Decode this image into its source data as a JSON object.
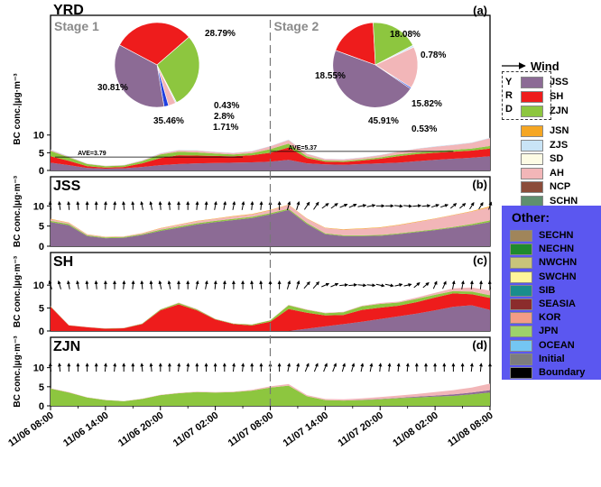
{
  "colors": {
    "JSS": "#8c6b95",
    "SH": "#ee1c1c",
    "ZJN": "#8dc63f",
    "JSN": "#f5a623",
    "ZJS": "#c9e4f6",
    "SD": "#fdfbe4",
    "AH": "#f2b6b8",
    "NCP": "#8b4c3a",
    "SCHN": "#5f8f6f",
    "SECHN": "#a0855a",
    "NECHN": "#1f8a2e",
    "NWCHN": "#c9c47a",
    "SWCHN": "#fff59a",
    "SIB": "#1a8d8d",
    "SEASIA": "#8b2c2c",
    "KOR": "#f39c86",
    "JPN": "#9ed16b",
    "OCEAN": "#74c6f2",
    "Initial": "#7d7d7d",
    "Boundary": "#000000",
    "other_box": "#5b57f0"
  },
  "legend": {
    "wind_label": "Wind",
    "yrd_letters": [
      "Y",
      "R",
      "D"
    ],
    "yrd_items": [
      "JSS",
      "SH",
      "ZJN"
    ],
    "main_items": [
      "JSN",
      "ZJS",
      "SD",
      "AH",
      "NCP",
      "SCHN"
    ],
    "other_title": "Other:",
    "other_items": [
      "SECHN",
      "NECHN",
      "NWCHN",
      "SWCHN",
      "SIB",
      "SEASIA",
      "KOR",
      "JPN",
      "OCEAN",
      "Initial",
      "Boundary"
    ]
  },
  "chart_data": {
    "type": "area",
    "x_tick_labels": [
      "11/06 08:00",
      "11/06 14:00",
      "11/06 20:00",
      "11/07 02:00",
      "11/07 08:00",
      "11/07 14:00",
      "11/07 20:00",
      "11/08 02:00",
      "11/08 08:00"
    ],
    "x_hours": [
      0,
      6,
      12,
      18,
      24,
      30,
      36,
      42,
      48
    ],
    "ylabel": "BC conc.|μg·m⁻³",
    "ylim": [
      0,
      13
    ],
    "yticks": [
      0,
      5,
      10
    ],
    "stage_divider_hour": 24,
    "hours": [
      0,
      2,
      4,
      6,
      8,
      10,
      12,
      14,
      16,
      18,
      20,
      22,
      24,
      26,
      28,
      30,
      32,
      34,
      36,
      38,
      40,
      42,
      44,
      46,
      48
    ],
    "panels": [
      {
        "title": "YRD",
        "letter": "(a)",
        "stage_labels": [
          "Stage 1",
          "Stage 2"
        ],
        "ave": [
          {
            "label": "AVE=3.79",
            "value": 3.79,
            "x_range": [
              0.5,
              21
            ]
          },
          {
            "label": "AVE=5.37",
            "value": 5.37,
            "x_range": [
              24,
              44
            ]
          }
        ],
        "series": [
          {
            "name": "JSS",
            "values": [
              2.2,
              1.5,
              0.7,
              0.5,
              0.6,
              1,
              1.5,
              1.8,
              2,
              2.1,
              2.2,
              2.3,
              2.5,
              3,
              2,
              1.7,
              1.6,
              1.8,
              2,
              2.2,
              2.6,
              3,
              3.3,
              3.6,
              4
            ]
          },
          {
            "name": "SH",
            "values": [
              1.8,
              1.2,
              0.5,
              0.3,
              0.4,
              1,
              2,
              2.5,
              2.2,
              2,
              1.8,
              2,
              2.5,
              3.5,
              1.5,
              0.8,
              0.8,
              1,
              1.3,
              1.8,
              2,
              2,
              2,
              2,
              2.2
            ]
          },
          {
            "name": "ZJN",
            "values": [
              1.5,
              1,
              0.6,
              0.4,
              0.4,
              0.6,
              1,
              1,
              0.9,
              0.7,
              0.5,
              0.6,
              1,
              1.1,
              0.5,
              0.3,
              0.3,
              0.3,
              0.4,
              0.5,
              0.5,
              0.5,
              0.5,
              0.6,
              0.7
            ]
          },
          {
            "name": "AH",
            "values": [
              0.3,
              0.2,
              0.1,
              0.1,
              0.1,
              0.2,
              0.3,
              0.4,
              0.5,
              0.4,
              0.4,
              0.5,
              0.8,
              1,
              0.7,
              0.4,
              0.4,
              0.5,
              0.6,
              0.8,
              1,
              1.2,
              1.4,
              1.6,
              2.2
            ]
          },
          {
            "name": "ZJS",
            "values": [
              0.1,
              0.1,
              0.05,
              0.05,
              0.05,
              0.1,
              0.1,
              0.1,
              0.1,
              0.1,
              0.1,
              0.1,
              0.1,
              0.1,
              0.1,
              0.1,
              0.1,
              0.1,
              0.1,
              0.1,
              0.1,
              0.1,
              0.1,
              0.1,
              0.15
            ]
          }
        ],
        "pies": [
          {
            "stage": "Stage 1",
            "slices": [
              {
                "name": "JSS",
                "value": 35.46
              },
              {
                "name": "SH",
                "value": 30.81
              },
              {
                "name": "ZJN",
                "value": 28.79
              },
              {
                "name": "AH",
                "value": 2.8
              },
              {
                "name": "ZJS",
                "value": 0.43
              },
              {
                "name": "Other",
                "value": 1.71
              }
            ]
          },
          {
            "stage": "Stage 2",
            "slices": [
              {
                "name": "JSS",
                "value": 45.91
              },
              {
                "name": "SH",
                "value": 18.55
              },
              {
                "name": "ZJN",
                "value": 18.08
              },
              {
                "name": "AH",
                "value": 15.82
              },
              {
                "name": "ZJS",
                "value": 0.78
              },
              {
                "name": "Other",
                "value": 0.53
              }
            ]
          }
        ]
      },
      {
        "title": "JSS",
        "letter": "(b)",
        "series": [
          {
            "name": "JSS",
            "values": [
              6,
              5.2,
              2.5,
              2,
              2.1,
              2.8,
              3.8,
              4.6,
              5.4,
              6,
              6.5,
              7,
              7.9,
              9,
              5.5,
              3,
              2.5,
              2.5,
              2.6,
              3,
              3.5,
              4,
              4.6,
              5.2,
              6
            ]
          },
          {
            "name": "ZJN",
            "values": [
              0.3,
              0.3,
              0.2,
              0.2,
              0.2,
              0.2,
              0.3,
              0.3,
              0.3,
              0.3,
              0.3,
              0.3,
              0.3,
              0.3,
              0.3,
              0.2,
              0.2,
              0.2,
              0.2,
              0.2,
              0.2,
              0.2,
              0.2,
              0.3,
              0.4
            ]
          },
          {
            "name": "AH",
            "values": [
              0.4,
              0.3,
              0.2,
              0.1,
              0.1,
              0.2,
              0.3,
              0.4,
              0.5,
              0.5,
              0.6,
              0.6,
              0.7,
              0.9,
              1,
              1.3,
              1.4,
              1.6,
              1.8,
              2,
              2.3,
              2.6,
              2.9,
              3.1,
              3.3
            ]
          },
          {
            "name": "JSN",
            "values": [
              0.1,
              0.1,
              0.05,
              0.05,
              0.05,
              0.05,
              0.1,
              0.1,
              0.1,
              0.1,
              0.1,
              0.1,
              0.1,
              0.1,
              0.1,
              0.1,
              0.1,
              0.1,
              0.1,
              0.1,
              0.1,
              0.1,
              0.1,
              0.1,
              0.2
            ]
          }
        ]
      },
      {
        "title": "SH",
        "letter": "(c)",
        "series": [
          {
            "name": "JSS",
            "values": [
              0,
              0,
              0,
              0,
              0,
              0,
              0,
              0,
              0,
              0,
              0,
              0,
              0,
              0,
              0.5,
              1,
              1.5,
              2,
              2.6,
              3.2,
              3.8,
              4.5,
              5.3,
              5.6,
              4.6
            ]
          },
          {
            "name": "SH",
            "values": [
              5.3,
              1.2,
              0.8,
              0.5,
              0.6,
              1.5,
              4.5,
              5.8,
              4.5,
              2.5,
              1.5,
              1.2,
              2,
              4.8,
              3.5,
              2.4,
              2,
              2.6,
              2.5,
              2.3,
              2.5,
              2.8,
              2.9,
              2.4,
              2.6
            ]
          },
          {
            "name": "ZJN",
            "values": [
              0.1,
              0.05,
              0.05,
              0.05,
              0.05,
              0.1,
              0.2,
              0.3,
              0.2,
              0.1,
              0.1,
              0.2,
              0.3,
              0.8,
              0.6,
              0.5,
              0.6,
              0.8,
              0.8,
              0.7,
              0.7,
              0.6,
              0.5,
              0.6,
              0.6
            ]
          },
          {
            "name": "AH",
            "values": [
              0.05,
              0.05,
              0.05,
              0.05,
              0.05,
              0.05,
              0.05,
              0.1,
              0.1,
              0.05,
              0.05,
              0.05,
              0.05,
              0.1,
              0.1,
              0.1,
              0.1,
              0.1,
              0.2,
              0.2,
              0.3,
              0.4,
              0.6,
              0.9,
              1
            ]
          }
        ]
      },
      {
        "title": "ZJN",
        "letter": "(d)",
        "series": [
          {
            "name": "ZJN",
            "values": [
              4.5,
              3.5,
              2.2,
              1.5,
              1.2,
              1.8,
              2.8,
              3.3,
              3.6,
              3.5,
              3.6,
              4,
              4.8,
              5.3,
              2.5,
              1.5,
              1.4,
              1.5,
              1.7,
              2,
              2.2,
              2.4,
              2.6,
              3,
              3.5
            ]
          },
          {
            "name": "JSS",
            "values": [
              0,
              0,
              0,
              0,
              0,
              0,
              0,
              0,
              0,
              0,
              0,
              0,
              0,
              0,
              0,
              0,
              0,
              0.05,
              0.1,
              0.1,
              0.2,
              0.3,
              0.4,
              0.5,
              0.6
            ]
          },
          {
            "name": "AH",
            "values": [
              0.1,
              0.1,
              0.05,
              0.05,
              0.05,
              0.1,
              0.1,
              0.1,
              0.1,
              0.1,
              0.1,
              0.2,
              0.3,
              0.4,
              0.3,
              0.3,
              0.3,
              0.4,
              0.5,
              0.6,
              0.7,
              0.9,
              1.1,
              1.3,
              1.7
            ]
          }
        ]
      }
    ],
    "wind": {
      "b": [
        [
          -0.15,
          1
        ],
        [
          -0.1,
          1
        ],
        [
          0,
          1
        ],
        [
          0.1,
          1
        ],
        [
          -0.1,
          1
        ],
        [
          -0.2,
          1
        ],
        [
          -0.1,
          1
        ],
        [
          0,
          1
        ],
        [
          0.1,
          1
        ],
        [
          0.2,
          1
        ],
        [
          0.2,
          1
        ],
        [
          0.1,
          1
        ],
        [
          0,
          1
        ],
        [
          0.3,
          1
        ],
        [
          0.6,
          0.9
        ],
        [
          0.8,
          0.6
        ],
        [
          0.9,
          0.4
        ],
        [
          1,
          0.2
        ],
        [
          1,
          0
        ],
        [
          1,
          -0.1
        ],
        [
          1,
          0.1
        ],
        [
          0.9,
          0.3
        ],
        [
          0.7,
          0.6
        ],
        [
          0.5,
          0.8
        ],
        [
          0.3,
          0.9
        ]
      ],
      "c": [
        [
          -0.3,
          1
        ],
        [
          -0.2,
          1
        ],
        [
          -0.1,
          1
        ],
        [
          0,
          1
        ],
        [
          0.1,
          1
        ],
        [
          -0.1,
          1
        ],
        [
          -0.2,
          1
        ],
        [
          0,
          1
        ],
        [
          0.2,
          1
        ],
        [
          0.1,
          1
        ],
        [
          0,
          1
        ],
        [
          -0.1,
          1
        ],
        [
          0,
          1
        ],
        [
          0.3,
          1
        ],
        [
          0.7,
          0.8
        ],
        [
          0.9,
          0.4
        ],
        [
          1,
          0.1
        ],
        [
          1,
          -0.1
        ],
        [
          1,
          -0.2
        ],
        [
          0.9,
          0.2
        ],
        [
          0.7,
          0.6
        ],
        [
          0.4,
          0.9
        ],
        [
          0.2,
          1
        ],
        [
          0.1,
          1
        ],
        [
          -0.1,
          1
        ]
      ],
      "d": [
        [
          -0.1,
          1
        ],
        [
          0,
          1
        ],
        [
          0,
          1
        ],
        [
          0.1,
          1
        ],
        [
          0,
          1
        ],
        [
          -0.1,
          1
        ],
        [
          0,
          1
        ],
        [
          0.1,
          1
        ],
        [
          0,
          1
        ],
        [
          0,
          1
        ],
        [
          0.1,
          1
        ],
        [
          0,
          1
        ],
        [
          0,
          1
        ],
        [
          0.2,
          1
        ],
        [
          0.4,
          1
        ],
        [
          0.4,
          1
        ],
        [
          0.3,
          1
        ],
        [
          0.2,
          1
        ],
        [
          0.1,
          1
        ],
        [
          0.1,
          1
        ],
        [
          0,
          1
        ],
        [
          0,
          1
        ],
        [
          0,
          1
        ],
        [
          0.1,
          1
        ],
        [
          0,
          1
        ]
      ]
    }
  }
}
